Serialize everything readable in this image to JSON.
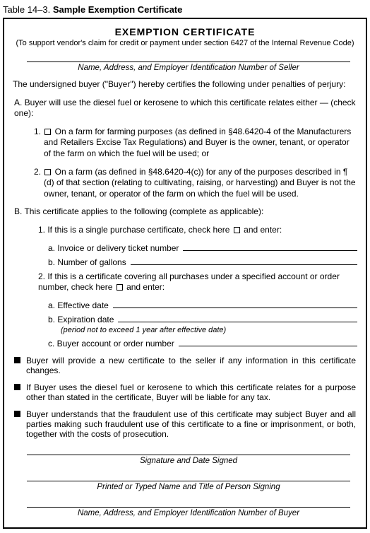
{
  "tableCaption": {
    "number": "Table 14–3.",
    "title": "Sample Exemption Certificate"
  },
  "cert": {
    "title": "EXEMPTION CERTIFICATE",
    "subtitle": "(To support vendor's claim for credit or payment under section 6427 of the Internal Revenue Code)",
    "sellerLine": "Name, Address, and Employer Identification Number of Seller",
    "intro": "The undersigned buyer (\"Buyer\") hereby certifies the following under penalties of perjury:",
    "A": {
      "heading": "A. Buyer will use the diesel fuel or kerosene to which this certificate relates either — (check one):",
      "opt1_pre": "1. ",
      "opt1_post": " On a farm for farming purposes (as defined in §48.6420-4 of the Manufacturers and Retailers Excise Tax Regulations) and Buyer is the owner, tenant, or operator of the farm on which the fuel will be used; or",
      "opt2_pre": "2. ",
      "opt2_post": " On a farm (as defined in §48.6420-4(c)) for any of the purposes described in ¶ (d) of that section (relating to cultivating, raising, or harvesting) and Buyer is not the owner, tenant, or operator of the farm on which the fuel will be used."
    },
    "B": {
      "heading": "B. This certificate applies to the following (complete as applicable):",
      "b1_pre": "1.    If this is a single purchase certificate, check here ",
      "b1_post": " and enter:",
      "b1a": "a. Invoice or delivery ticket number",
      "b1b": "b. Number of gallons",
      "b2_pre": "2.    If this is a certificate covering all purchases under a specified account or order number, check here ",
      "b2_post": " and enter:",
      "b2a": "a. Effective date",
      "b2b": "b. Expiration date",
      "b2b_note": "(period not to exceed 1 year after effective date)",
      "b2c": "c. Buyer account or order number"
    },
    "bullets": [
      "Buyer will provide a new certificate to the seller if any information in this certificate changes.",
      "If Buyer uses the diesel fuel or kerosene to which this certificate relates for a purpose other than stated in the certificate, Buyer will be liable for any tax.",
      "Buyer understands that the fraudulent use of this certificate may subject Buyer and all parties making such fraudulent use of this certificate to a fine or imprisonment, or both, together with the costs of prosecution."
    ],
    "sigLines": [
      "Signature and Date Signed",
      "Printed or Typed Name and Title of Person Signing",
      "Name, Address, and Employer Identification Number of Buyer"
    ]
  }
}
